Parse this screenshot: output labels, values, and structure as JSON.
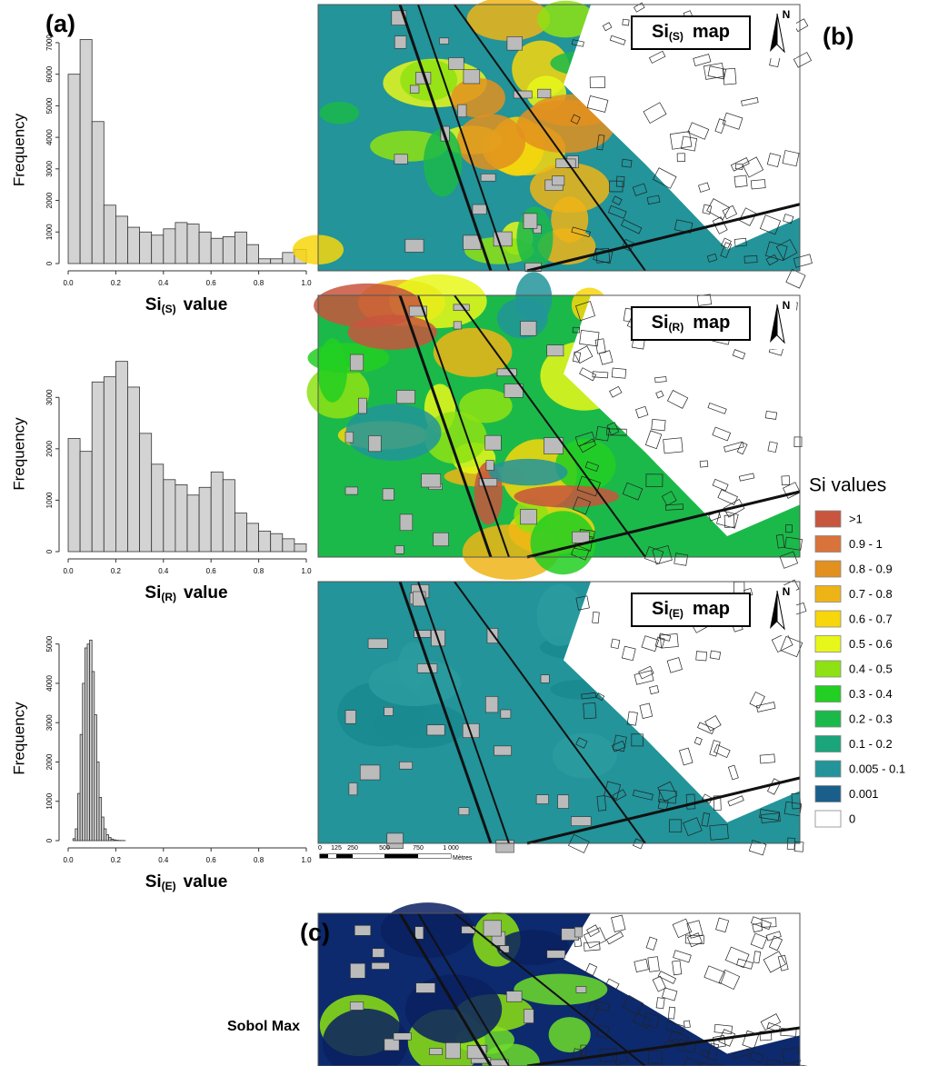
{
  "chart_data": [
    {
      "type": "histogram",
      "ylabel": "Frequency",
      "xlabel_parts": [
        "Si",
        "(S)",
        "value"
      ],
      "color": "#d3d3d3",
      "bins": [
        0,
        0.05,
        0.1,
        0.15,
        0.2,
        0.25,
        0.3,
        0.35,
        0.4,
        0.45,
        0.5,
        0.55,
        0.6,
        0.65,
        0.7,
        0.75,
        0.8,
        0.85,
        0.9,
        0.95,
        1
      ],
      "values": [
        6000,
        7100,
        4500,
        1850,
        1500,
        1150,
        1000,
        900,
        1100,
        1300,
        1250,
        1000,
        800,
        850,
        1000,
        600,
        150,
        150,
        350,
        450
      ],
      "xlim": [
        0,
        1
      ],
      "ylim": [
        0,
        7200
      ],
      "xticks": [
        {
          "value": 0,
          "label": "0.0"
        },
        0.2,
        0.4,
        0.6,
        0.8,
        {
          "value": 1,
          "label": "1.0"
        }
      ],
      "yticks": [
        0,
        1000,
        2000,
        3000,
        4000,
        5000,
        6000,
        7000
      ]
    },
    {
      "type": "histogram",
      "ylabel": "Frequency",
      "xlabel_parts": [
        "Si",
        "(R)",
        "value"
      ],
      "color": "#d3d3d3",
      "bins": [
        0,
        0.05,
        0.1,
        0.15,
        0.2,
        0.25,
        0.3,
        0.35,
        0.4,
        0.45,
        0.5,
        0.55,
        0.6,
        0.65,
        0.7,
        0.75,
        0.8,
        0.85,
        0.9,
        0.95,
        1
      ],
      "values": [
        2200,
        1950,
        3300,
        3400,
        3700,
        3200,
        2300,
        1700,
        1400,
        1300,
        1100,
        1250,
        1550,
        1400,
        750,
        550,
        400,
        350,
        250,
        150
      ],
      "xlim": [
        0,
        1
      ],
      "ylim": [
        0,
        3800
      ],
      "xticks": [
        {
          "value": 0,
          "label": "0.0"
        },
        0.2,
        0.4,
        0.6,
        0.8,
        {
          "value": 1,
          "label": "1.0"
        }
      ],
      "yticks": [
        0,
        1000,
        2000,
        3000
      ]
    },
    {
      "type": "histogram",
      "ylabel": "Frequency",
      "xlabel_parts": [
        "Si",
        "(E)",
        "value"
      ],
      "color": "#d3d3d3",
      "bins": [
        0.02,
        0.03,
        0.04,
        0.05,
        0.06,
        0.07,
        0.08,
        0.09,
        0.1,
        0.11,
        0.12,
        0.13,
        0.14,
        0.15,
        0.16,
        0.17,
        0.18,
        0.19,
        0.2,
        0.21,
        0.22,
        0.23,
        0.24
      ],
      "values": [
        50,
        300,
        1200,
        2700,
        4000,
        4900,
        5000,
        5100,
        4300,
        3200,
        2000,
        1100,
        600,
        300,
        150,
        80,
        40,
        20,
        10,
        5,
        3,
        2
      ],
      "xlim": [
        0,
        1
      ],
      "ylim": [
        0,
        5200
      ],
      "xticks": [
        {
          "value": 0,
          "label": "0.0"
        },
        0.2,
        0.4,
        0.6,
        0.8,
        {
          "value": 1,
          "label": "1.0"
        }
      ],
      "yticks": [
        0,
        1000,
        2000,
        3000,
        4000,
        5000
      ]
    }
  ],
  "panel_labels": [
    "(a)",
    "(b)",
    "(c)"
  ],
  "maps": [
    {
      "title_parts": [
        "Si",
        "(S)",
        "map"
      ],
      "north_label": "N"
    },
    {
      "title_parts": [
        "Si",
        "(R)",
        "map"
      ],
      "north_label": "N"
    },
    {
      "title_parts": [
        "Si",
        "(E)",
        "map"
      ],
      "north_label": "N"
    }
  ],
  "scale_bar": {
    "labels": [
      "0",
      "125",
      "250",
      "500",
      "750",
      "1 000"
    ],
    "unit": "Mètres"
  },
  "legend": {
    "title": "Si values",
    "items": [
      {
        "label": ">1",
        "color": "#c8553d"
      },
      {
        "label": "0.9 - 1",
        "color": "#d9733a"
      },
      {
        "label": "0.8 - 0.9",
        "color": "#e2901f"
      },
      {
        "label": "0.7 - 0.8",
        "color": "#eeb416"
      },
      {
        "label": "0.6 - 0.7",
        "color": "#f7d60c"
      },
      {
        "label": "0.5 - 0.6",
        "color": "#e8f71a"
      },
      {
        "label": "0.4 - 0.5",
        "color": "#8ee213"
      },
      {
        "label": "0.3 - 0.4",
        "color": "#22cf22"
      },
      {
        "label": "0.2 - 0.3",
        "color": "#1bb94a"
      },
      {
        "label": "0.1 - 0.2",
        "color": "#1aa57a"
      },
      {
        "label": "0.005 - 0.1",
        "color": "#22949a"
      },
      {
        "label": "0.001",
        "color": "#1a5f8b"
      },
      {
        "label": "0",
        "color": "#ffffff"
      }
    ]
  },
  "sobol_label": "Sobol Max"
}
